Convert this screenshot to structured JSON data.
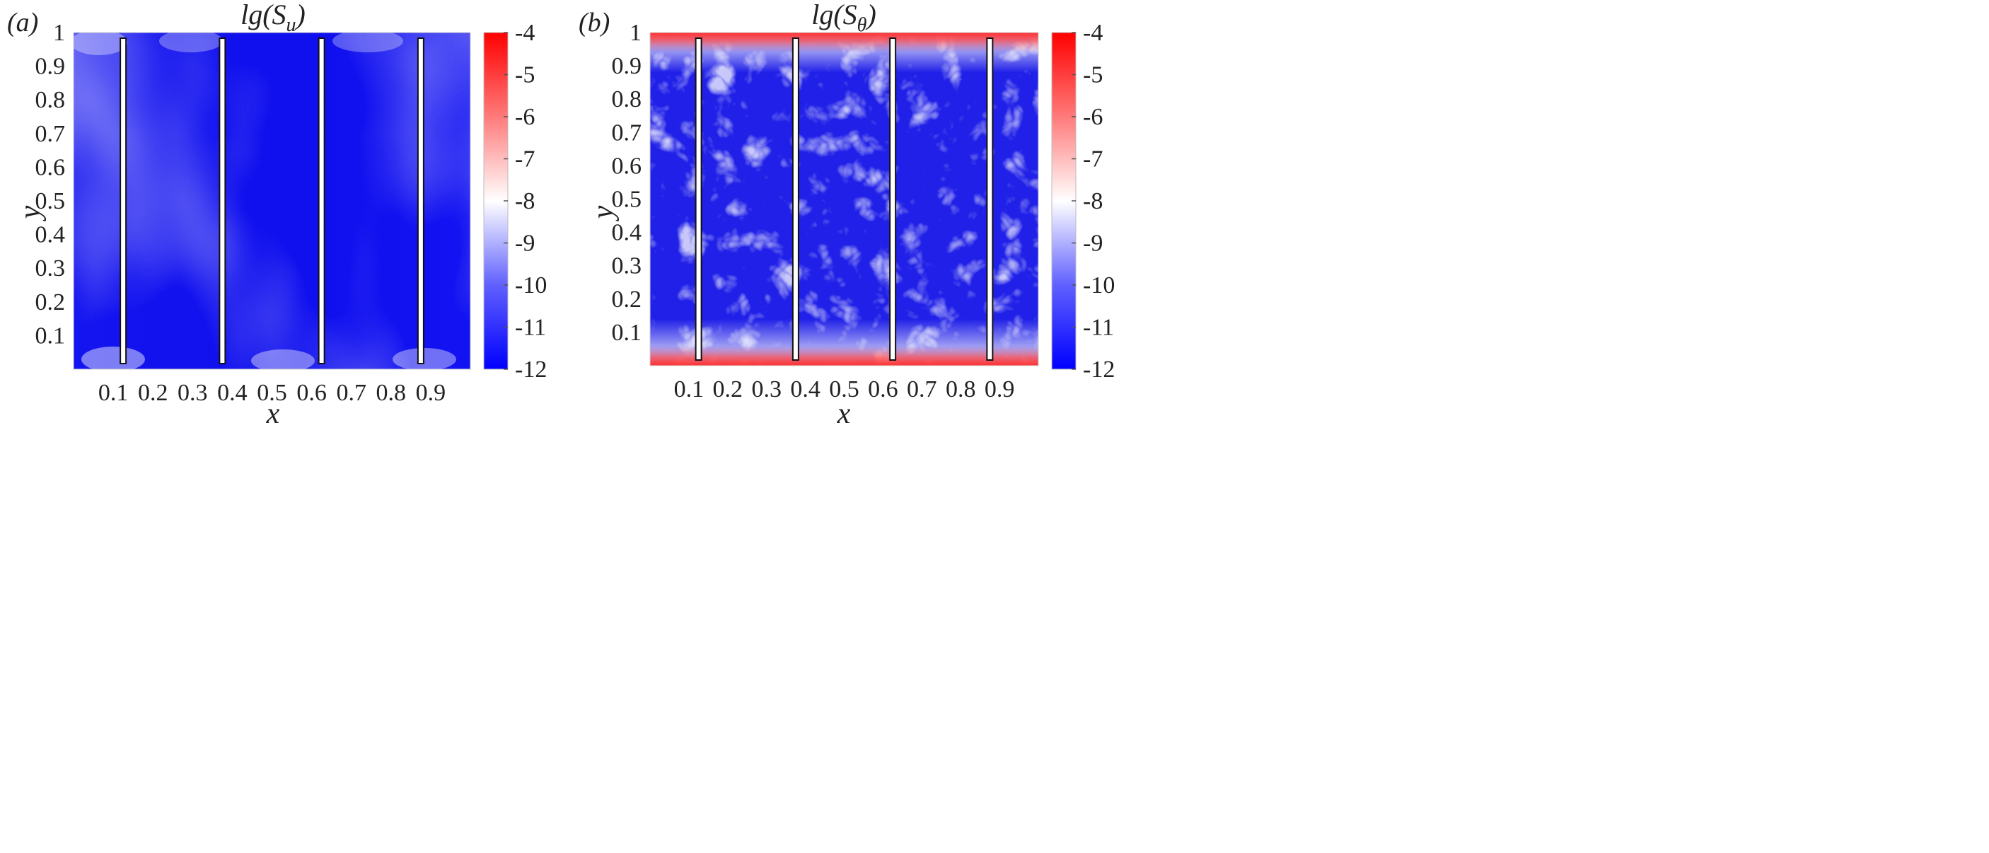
{
  "chart_data": [
    {
      "type": "heatmap",
      "panel_label": "(a)",
      "title": {
        "prefix": "lg(S",
        "sub": "u",
        "suffix": ")"
      },
      "xlabel": "x",
      "ylabel": "y",
      "xlim": [
        0,
        1
      ],
      "ylim": [
        0,
        1
      ],
      "xticks": [
        0.1,
        0.2,
        0.3,
        0.4,
        0.5,
        0.6,
        0.7,
        0.8,
        0.9
      ],
      "yticks": [
        0.1,
        0.2,
        0.3,
        0.4,
        0.5,
        0.6,
        0.7,
        0.8,
        0.9,
        1
      ],
      "colorbar": {
        "range": [
          -12,
          -4
        ],
        "ticks": [
          -4,
          -5,
          -6,
          -7,
          -8,
          -9,
          -10,
          -11,
          -12
        ],
        "colors": [
          "#0000ff",
          "#ffffff",
          "#ff0000"
        ]
      },
      "partitions_x": [
        0.125,
        0.375,
        0.625,
        0.875
      ],
      "field": "mostly uniform near -11.5 with smooth streaks around -10 and values near -8 at corners"
    },
    {
      "type": "heatmap",
      "panel_label": "(b)",
      "title": {
        "prefix": "lg(S",
        "sub": "θ",
        "suffix": ")"
      },
      "xlabel": "x",
      "ylabel": "y",
      "xlim": [
        0,
        1
      ],
      "ylim": [
        0,
        1
      ],
      "xticks": [
        0.1,
        0.2,
        0.3,
        0.4,
        0.5,
        0.6,
        0.7,
        0.8,
        0.9
      ],
      "yticks": [
        0.1,
        0.2,
        0.3,
        0.4,
        0.5,
        0.6,
        0.7,
        0.8,
        0.9,
        1
      ],
      "colorbar": {
        "range": [
          -12,
          -4
        ],
        "ticks": [
          -4,
          -5,
          -6,
          -7,
          -8,
          -9,
          -10,
          -11,
          -12
        ],
        "colors": [
          "#0000ff",
          "#ffffff",
          "#ff0000"
        ]
      },
      "partitions_x": [
        0.125,
        0.375,
        0.625,
        0.875
      ],
      "field": "filamentary turbulent structures between -12 and -8 with values near -4 along top and bottom walls"
    }
  ]
}
